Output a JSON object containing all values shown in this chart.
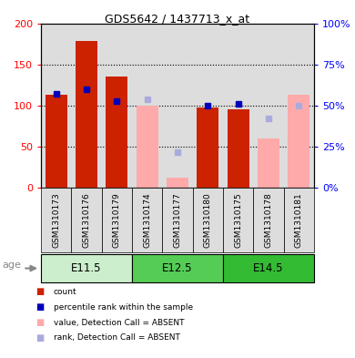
{
  "title": "GDS5642 / 1437713_x_at",
  "samples": [
    "GSM1310173",
    "GSM1310176",
    "GSM1310179",
    "GSM1310174",
    "GSM1310177",
    "GSM1310180",
    "GSM1310175",
    "GSM1310178",
    "GSM1310181"
  ],
  "count_values": [
    113,
    178,
    135,
    0,
    0,
    98,
    95,
    0,
    0
  ],
  "percentile_values": [
    57,
    60,
    53,
    0,
    0,
    50,
    51,
    0,
    0
  ],
  "absent_value_bars": [
    0,
    0,
    0,
    100,
    13,
    0,
    0,
    60,
    113
  ],
  "absent_rank_dots": [
    0,
    0,
    0,
    54,
    22,
    0,
    0,
    42,
    50
  ],
  "age_groups": [
    {
      "label": "E11.5",
      "start": 0,
      "end": 3,
      "color": "#CCEECC"
    },
    {
      "label": "E12.5",
      "start": 3,
      "end": 6,
      "color": "#55CC55"
    },
    {
      "label": "E14.5",
      "start": 6,
      "end": 9,
      "color": "#33BB33"
    }
  ],
  "left_ylim": [
    0,
    200
  ],
  "right_ylim": [
    0,
    100
  ],
  "left_yticks": [
    0,
    50,
    100,
    150,
    200
  ],
  "right_yticks": [
    0,
    25,
    50,
    75,
    100
  ],
  "left_yticklabels": [
    "0",
    "50",
    "100",
    "150",
    "200"
  ],
  "right_yticklabels": [
    "0%",
    "25%",
    "50%",
    "75%",
    "100%"
  ],
  "bar_color_red": "#CC2200",
  "bar_color_pink": "#FFAAAA",
  "dot_color_blue": "#0000BB",
  "dot_color_lightblue": "#AAAADD",
  "col_bg_color": "#DDDDDD",
  "legend_labels": [
    "count",
    "percentile rank within the sample",
    "value, Detection Call = ABSENT",
    "rank, Detection Call = ABSENT"
  ]
}
